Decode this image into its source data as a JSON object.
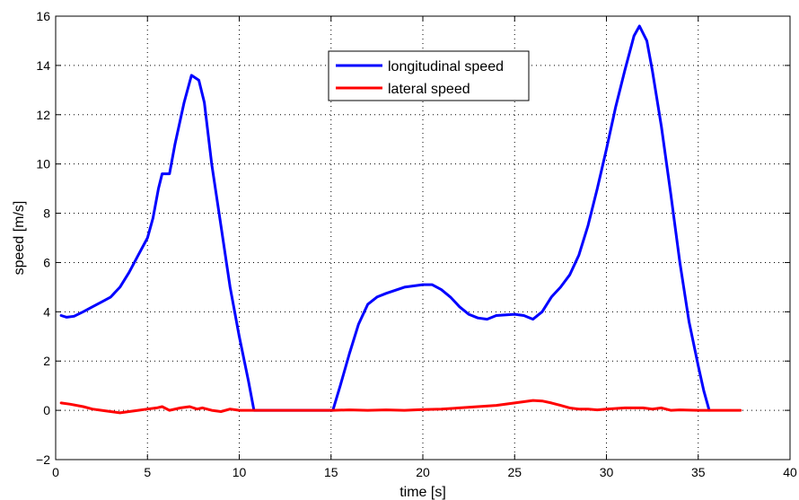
{
  "chart_data": {
    "type": "line",
    "title": "",
    "xlabel": "time [s]",
    "ylabel": "speed [m/s]",
    "xlim": [
      0,
      40
    ],
    "ylim": [
      -2,
      16
    ],
    "xticks": [
      0,
      5,
      10,
      15,
      20,
      25,
      30,
      35,
      40
    ],
    "yticks": [
      -2,
      0,
      2,
      4,
      6,
      8,
      10,
      12,
      14,
      16
    ],
    "x_tick_labels": [
      "0",
      "5",
      "10",
      "15",
      "20",
      "25",
      "30",
      "35",
      "40"
    ],
    "y_tick_labels": [
      "−2",
      "0",
      "2",
      "4",
      "6",
      "8",
      "10",
      "12",
      "14",
      "16"
    ],
    "grid": true,
    "legend_position": "top-center",
    "series": [
      {
        "name": "longitudinal speed",
        "color": "#0000ff",
        "points": [
          [
            0.3,
            3.85
          ],
          [
            0.6,
            3.78
          ],
          [
            1.0,
            3.82
          ],
          [
            1.5,
            4.0
          ],
          [
            2.0,
            4.2
          ],
          [
            2.5,
            4.4
          ],
          [
            3.0,
            4.6
          ],
          [
            3.5,
            5.0
          ],
          [
            4.0,
            5.6
          ],
          [
            4.5,
            6.3
          ],
          [
            5.0,
            7.0
          ],
          [
            5.3,
            7.8
          ],
          [
            5.6,
            9.0
          ],
          [
            5.8,
            9.6
          ],
          [
            6.2,
            9.6
          ],
          [
            6.5,
            10.8
          ],
          [
            7.0,
            12.5
          ],
          [
            7.4,
            13.6
          ],
          [
            7.8,
            13.4
          ],
          [
            8.1,
            12.5
          ],
          [
            8.5,
            10.0
          ],
          [
            9.0,
            7.5
          ],
          [
            9.5,
            5.0
          ],
          [
            10.0,
            3.0
          ],
          [
            10.5,
            1.2
          ],
          [
            10.8,
            0.0
          ],
          [
            15.1,
            0.0
          ],
          [
            15.5,
            1.0
          ],
          [
            16.0,
            2.3
          ],
          [
            16.5,
            3.5
          ],
          [
            17.0,
            4.3
          ],
          [
            17.5,
            4.6
          ],
          [
            18.0,
            4.75
          ],
          [
            19.0,
            5.0
          ],
          [
            20.0,
            5.1
          ],
          [
            20.5,
            5.1
          ],
          [
            21.0,
            4.9
          ],
          [
            21.5,
            4.6
          ],
          [
            22.0,
            4.2
          ],
          [
            22.5,
            3.9
          ],
          [
            23.0,
            3.75
          ],
          [
            23.5,
            3.7
          ],
          [
            24.0,
            3.85
          ],
          [
            25.0,
            3.9
          ],
          [
            25.5,
            3.85
          ],
          [
            26.0,
            3.7
          ],
          [
            26.5,
            4.0
          ],
          [
            27.0,
            4.6
          ],
          [
            27.5,
            5.0
          ],
          [
            28.0,
            5.5
          ],
          [
            28.5,
            6.3
          ],
          [
            29.0,
            7.5
          ],
          [
            29.5,
            9.0
          ],
          [
            30.0,
            10.6
          ],
          [
            30.5,
            12.3
          ],
          [
            31.0,
            13.8
          ],
          [
            31.5,
            15.2
          ],
          [
            31.8,
            15.6
          ],
          [
            32.2,
            15.0
          ],
          [
            32.5,
            13.8
          ],
          [
            33.0,
            11.5
          ],
          [
            33.5,
            8.8
          ],
          [
            34.0,
            6.0
          ],
          [
            34.5,
            3.6
          ],
          [
            35.0,
            1.8
          ],
          [
            35.3,
            0.8
          ],
          [
            35.6,
            0.0
          ]
        ]
      },
      {
        "name": "lateral speed",
        "color": "#ff0000",
        "points": [
          [
            0.3,
            0.3
          ],
          [
            0.8,
            0.25
          ],
          [
            1.5,
            0.15
          ],
          [
            2.0,
            0.05
          ],
          [
            2.5,
            0.0
          ],
          [
            3.0,
            -0.05
          ],
          [
            3.5,
            -0.1
          ],
          [
            4.0,
            -0.05
          ],
          [
            4.5,
            0.0
          ],
          [
            5.0,
            0.05
          ],
          [
            5.5,
            0.1
          ],
          [
            5.8,
            0.15
          ],
          [
            6.2,
            0.0
          ],
          [
            6.8,
            0.1
          ],
          [
            7.3,
            0.15
          ],
          [
            7.7,
            0.05
          ],
          [
            8.0,
            0.1
          ],
          [
            8.5,
            0.0
          ],
          [
            9.0,
            -0.05
          ],
          [
            9.5,
            0.05
          ],
          [
            10.0,
            0.0
          ],
          [
            10.8,
            0.0
          ],
          [
            15.1,
            0.0
          ],
          [
            16.0,
            0.02
          ],
          [
            17.0,
            0.0
          ],
          [
            18.0,
            0.02
          ],
          [
            19.0,
            0.0
          ],
          [
            20.0,
            0.03
          ],
          [
            21.0,
            0.05
          ],
          [
            22.0,
            0.1
          ],
          [
            23.0,
            0.15
          ],
          [
            24.0,
            0.2
          ],
          [
            25.0,
            0.3
          ],
          [
            25.5,
            0.35
          ],
          [
            26.0,
            0.4
          ],
          [
            26.5,
            0.38
          ],
          [
            27.0,
            0.3
          ],
          [
            27.5,
            0.2
          ],
          [
            28.0,
            0.1
          ],
          [
            28.5,
            0.05
          ],
          [
            29.0,
            0.05
          ],
          [
            29.5,
            0.02
          ],
          [
            30.0,
            0.05
          ],
          [
            31.0,
            0.1
          ],
          [
            32.0,
            0.1
          ],
          [
            32.5,
            0.05
          ],
          [
            33.0,
            0.1
          ],
          [
            33.5,
            0.0
          ],
          [
            34.0,
            0.02
          ],
          [
            35.0,
            0.0
          ],
          [
            36.0,
            0.0
          ],
          [
            37.3,
            0.0
          ]
        ]
      }
    ]
  }
}
